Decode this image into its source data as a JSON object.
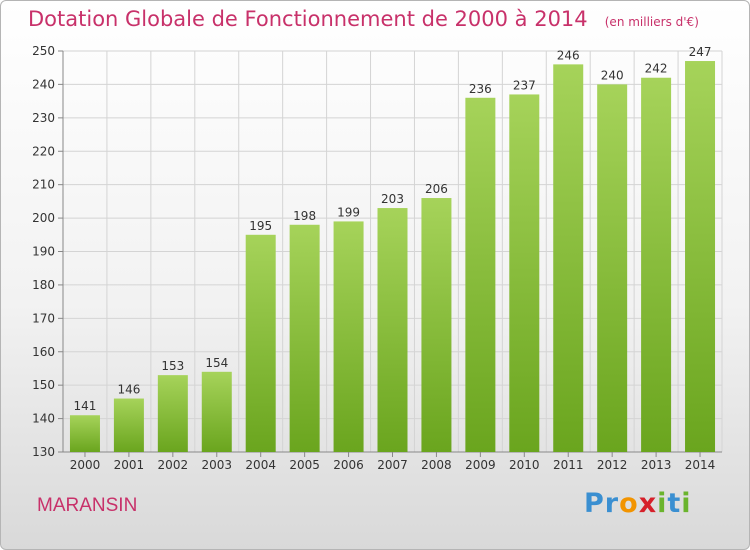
{
  "title": "Dotation Globale de Fonctionnement de 2000 à 2014",
  "unit": "(en milliers d'€)",
  "place": "MARANSIN",
  "logo": {
    "letters": [
      "P",
      "r",
      "o",
      "x",
      "i",
      "t",
      "i"
    ],
    "colors": [
      "#3a8fd1",
      "#3a8fd1",
      "#f29400",
      "#d6202a",
      "#6ab42d",
      "#3a8fd1",
      "#6ab42d"
    ]
  },
  "colors": {
    "title": "#c8316a",
    "bar_light": "#a6d35a",
    "bar_dark": "#6aa51e",
    "text": "#333333"
  },
  "chart_data": {
    "type": "bar",
    "categories": [
      "2000",
      "2001",
      "2002",
      "2003",
      "2004",
      "2005",
      "2006",
      "2007",
      "2008",
      "2009",
      "2010",
      "2011",
      "2012",
      "2013",
      "2014"
    ],
    "values": [
      141,
      146,
      153,
      154,
      195,
      198,
      199,
      203,
      206,
      236,
      237,
      246,
      240,
      242,
      247
    ],
    "ylim": [
      130,
      250
    ],
    "yticks": [
      130,
      140,
      150,
      160,
      170,
      180,
      190,
      200,
      210,
      220,
      230,
      240,
      250
    ],
    "grid": true,
    "xlabel": "",
    "ylabel": ""
  }
}
